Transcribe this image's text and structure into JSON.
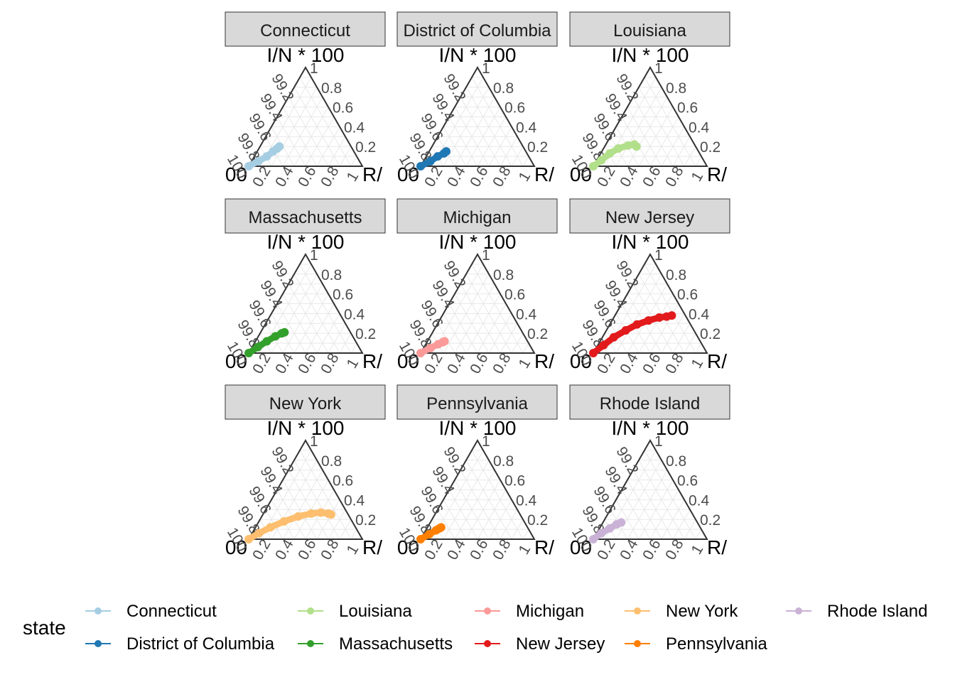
{
  "chart_data": {
    "type": "scatter",
    "subtype": "ternary",
    "facet_by": "state",
    "layout": {
      "rows": 3,
      "cols": 3
    },
    "axes": {
      "top_vertex": "I/N * 100",
      "left_vertex": "00",
      "right_vertex": "R/",
      "left_axis_ticks": [
        "99.2",
        "99.4",
        "99.6",
        "99.8",
        "100"
      ],
      "right_axis_ticks": [
        "1",
        "0.8",
        "0.6",
        "0.4",
        "0.2"
      ],
      "bottom_axis_ticks": [
        "0.2",
        "0.4",
        "0.6",
        "0.8",
        "1"
      ],
      "grid": true
    },
    "legend": {
      "title": "state",
      "position": "bottom",
      "entries": [
        "Connecticut",
        "District of Columbia",
        "Louisiana",
        "Massachusetts",
        "Michigan",
        "New Jersey",
        "New York",
        "Pennsylvania",
        "Rhode Island"
      ]
    },
    "series": [
      {
        "name": "Connecticut",
        "color": "#A6CEE3",
        "points": [
          {
            "R": 0,
            "I": 0
          },
          {
            "R": 0.06,
            "I": 0.05
          },
          {
            "R": 0.11,
            "I": 0.1
          },
          {
            "R": 0.14,
            "I": 0.15
          },
          {
            "R": 0.16,
            "I": 0.18
          },
          {
            "R": 0.17,
            "I": 0.2
          }
        ]
      },
      {
        "name": "District of Columbia",
        "color": "#1F78B4",
        "points": [
          {
            "R": 0,
            "I": 0
          },
          {
            "R": 0.06,
            "I": 0.05
          },
          {
            "R": 0.1,
            "I": 0.1
          },
          {
            "R": 0.14,
            "I": 0.13
          },
          {
            "R": 0.15,
            "I": 0.15
          }
        ]
      },
      {
        "name": "Louisiana",
        "color": "#B2DF8A",
        "points": [
          {
            "R": 0,
            "I": 0
          },
          {
            "R": 0.04,
            "I": 0.06
          },
          {
            "R": 0.08,
            "I": 0.13
          },
          {
            "R": 0.13,
            "I": 0.18
          },
          {
            "R": 0.2,
            "I": 0.21
          },
          {
            "R": 0.25,
            "I": 0.22
          },
          {
            "R": 0.28,
            "I": 0.2
          }
        ]
      },
      {
        "name": "Massachusetts",
        "color": "#33A02C",
        "points": [
          {
            "R": 0,
            "I": 0
          },
          {
            "R": 0.05,
            "I": 0.06
          },
          {
            "R": 0.1,
            "I": 0.12
          },
          {
            "R": 0.15,
            "I": 0.17
          },
          {
            "R": 0.19,
            "I": 0.2
          },
          {
            "R": 0.21,
            "I": 0.21
          }
        ]
      },
      {
        "name": "Michigan",
        "color": "#FB9A99",
        "points": [
          {
            "R": 0,
            "I": 0
          },
          {
            "R": 0.06,
            "I": 0.05
          },
          {
            "R": 0.11,
            "I": 0.09
          },
          {
            "R": 0.14,
            "I": 0.11
          },
          {
            "R": 0.15,
            "I": 0.12
          }
        ]
      },
      {
        "name": "New Jersey",
        "color": "#E31A1C",
        "points": [
          {
            "R": 0,
            "I": 0
          },
          {
            "R": 0.05,
            "I": 0.08
          },
          {
            "R": 0.1,
            "I": 0.16
          },
          {
            "R": 0.17,
            "I": 0.23
          },
          {
            "R": 0.24,
            "I": 0.29
          },
          {
            "R": 0.32,
            "I": 0.33
          },
          {
            "R": 0.4,
            "I": 0.36
          },
          {
            "R": 0.46,
            "I": 0.37
          },
          {
            "R": 0.5,
            "I": 0.38
          }
        ]
      },
      {
        "name": "New York",
        "color": "#FDBF6F",
        "points": [
          {
            "R": 0,
            "I": 0
          },
          {
            "R": 0.06,
            "I": 0.06
          },
          {
            "R": 0.13,
            "I": 0.12
          },
          {
            "R": 0.22,
            "I": 0.18
          },
          {
            "R": 0.32,
            "I": 0.23
          },
          {
            "R": 0.42,
            "I": 0.26
          },
          {
            "R": 0.5,
            "I": 0.27
          },
          {
            "R": 0.57,
            "I": 0.26
          },
          {
            "R": 0.6,
            "I": 0.25
          }
        ]
      },
      {
        "name": "Pennsylvania",
        "color": "#FF7F00",
        "points": [
          {
            "R": 0,
            "I": 0
          },
          {
            "R": 0.05,
            "I": 0.05
          },
          {
            "R": 0.09,
            "I": 0.09
          },
          {
            "R": 0.11,
            "I": 0.11
          },
          {
            "R": 0.12,
            "I": 0.12
          }
        ]
      },
      {
        "name": "Rhode Island",
        "color": "#CAB2D6",
        "points": [
          {
            "R": 0,
            "I": 0
          },
          {
            "R": 0.04,
            "I": 0.06
          },
          {
            "R": 0.09,
            "I": 0.11
          },
          {
            "R": 0.13,
            "I": 0.15
          },
          {
            "R": 0.16,
            "I": 0.17
          }
        ]
      }
    ]
  }
}
